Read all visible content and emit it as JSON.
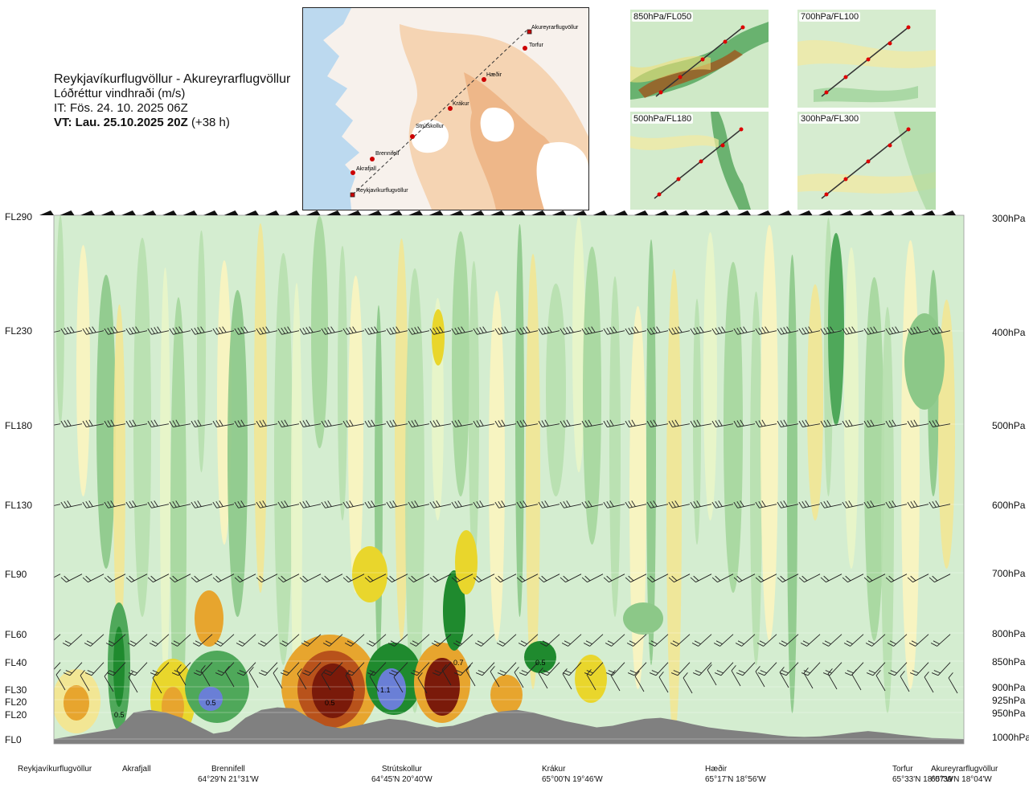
{
  "header": {
    "route": "Reykjavíkurflugvöllur - Akureyrarflugvöllur",
    "variable": "Lóðréttur vindhraði (m/s)",
    "issue_time": "IT: Fös. 24. 10. 2025 06Z",
    "valid_time": "VT: Lau. 25.10.2025 20Z",
    "lead": "(+38 h)"
  },
  "map": {
    "labels": {
      "akureyri": "Akureyrarflugvöllur",
      "torfur": "Torfur",
      "haedir": "Hæðir",
      "krakur": "Krákur",
      "strutskollur": "Strútskollur",
      "brennifell": "Brennifell",
      "akrafjall": "Akrafjall",
      "reykjavik": "Reykjavíkurflugvöllur"
    }
  },
  "thumbnails": {
    "t850": "850hPa/FL050",
    "t700": "700hPa/FL100",
    "t500": "500hPa/FL180",
    "t300": "300hPa/FL300"
  },
  "colors": {
    "plot_bg": "#d4edd0",
    "terrain": "#808080",
    "green_light": "#b7dfae",
    "green_mid": "#8cc888",
    "green_dark": "#4fa85a",
    "green_deep": "#1f8a2e",
    "yellow_light": "#fbf4bf",
    "yellow": "#f2e694",
    "yellow_strong": "#e9d62c",
    "orange": "#e7a52e",
    "brown": "#b8521b",
    "darkred": "#7a1a0a",
    "blue": "#6a7fd6"
  },
  "chart_data": {
    "type": "cross-section",
    "title": "Reykjavíkurflugvöllur - Akureyrarflugvöllur",
    "variable": "Vertical wind speed (m/s)",
    "flight_levels_left": [
      {
        "fl": "FL290",
        "hpa": "300hPa"
      },
      {
        "fl": "FL230",
        "hpa": "400hPa"
      },
      {
        "fl": "FL180",
        "hpa": "500hPa"
      },
      {
        "fl": "FL130",
        "hpa": "600hPa"
      },
      {
        "fl": "FL90",
        "hpa": "700hPa"
      },
      {
        "fl": "FL60",
        "hpa": "800hPa"
      },
      {
        "fl": "FL40",
        "hpa": "850hPa"
      },
      {
        "fl": "FL30",
        "hpa": "900hPa"
      },
      {
        "fl": "FL20",
        "hpa": "925hPa"
      },
      {
        "fl": "FL20",
        "hpa": "950hPa"
      },
      {
        "fl": "FL0",
        "hpa": "1000hPa"
      }
    ],
    "pressure_range_hpa": [
      1000,
      300
    ],
    "locations": [
      {
        "name": "Reykjavíkurflugvöllur",
        "coords": ""
      },
      {
        "name": "Akrafjall",
        "coords": ""
      },
      {
        "name": "Brennifell",
        "coords": "64°29'N 21°31'W"
      },
      {
        "name": "Strútskollur",
        "coords": "64°45'N 20°40'W"
      },
      {
        "name": "Krákur",
        "coords": "65°00'N 19°46'W"
      },
      {
        "name": "Hæðir",
        "coords": "65°17'N 18°56'W"
      },
      {
        "name": "Torfur",
        "coords": "65°33'N 18°07'W"
      },
      {
        "name": "Akureyrarflugvöllur",
        "coords": "65°39'N 18°04'W"
      }
    ],
    "contour_labels": [
      "0.5",
      "0.5",
      "0.5",
      "1.1",
      "0.7",
      "0.5"
    ],
    "terrain_profile_hpa": [
      1000,
      995,
      990,
      985,
      980,
      950,
      945,
      950,
      960,
      975,
      990,
      985,
      960,
      945,
      940,
      942,
      960,
      975,
      980,
      975,
      968,
      962,
      965,
      972,
      978,
      975,
      966,
      955,
      948,
      945,
      950,
      958,
      966,
      972,
      978,
      975,
      968,
      962,
      960,
      965,
      972,
      978,
      982,
      985,
      988,
      992,
      995,
      996,
      995,
      992,
      988,
      985,
      988,
      992,
      995,
      998,
      999,
      1000
    ]
  }
}
